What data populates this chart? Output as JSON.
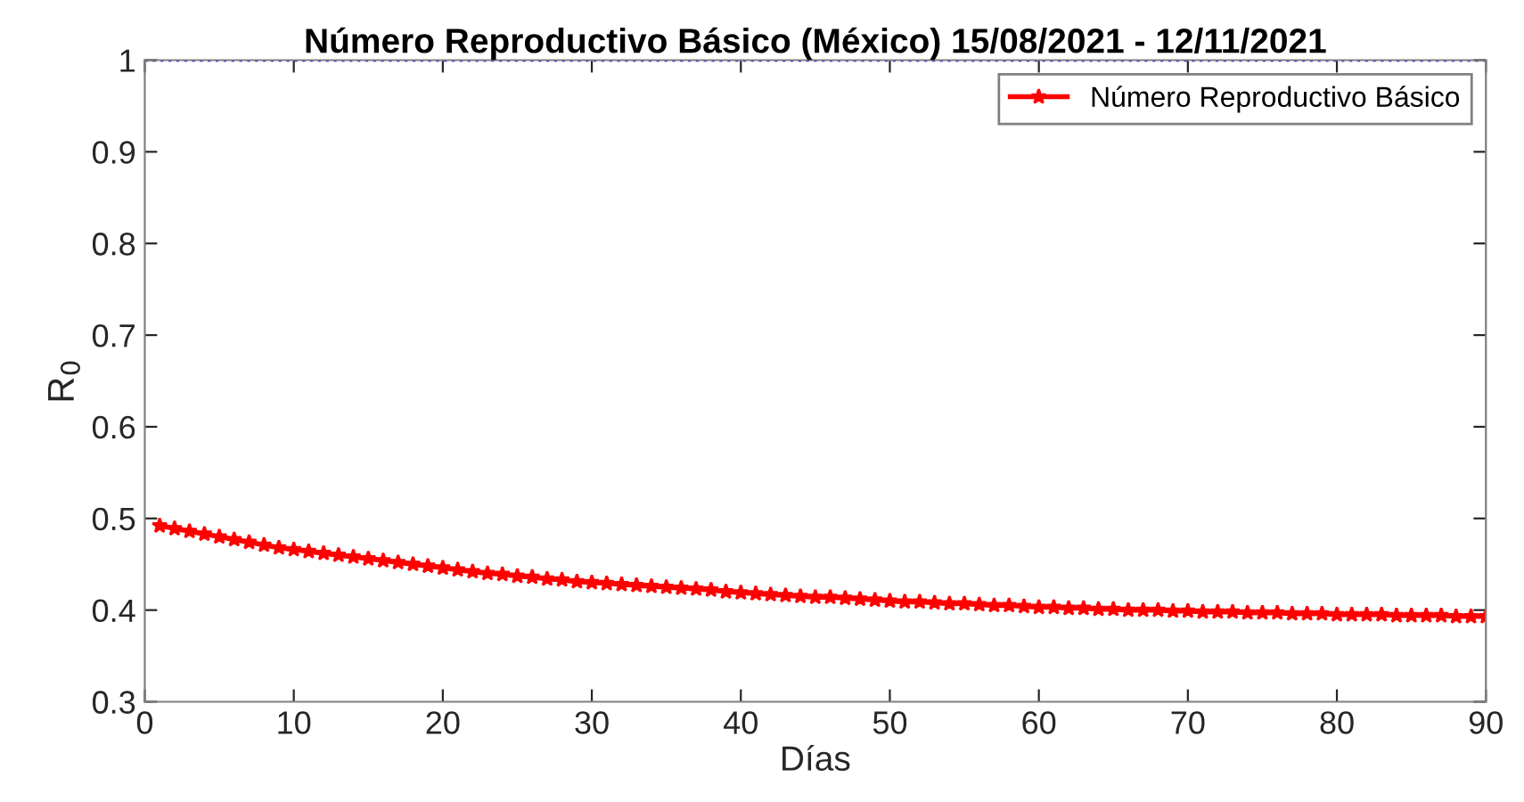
{
  "chart_data": {
    "type": "line",
    "title": "Número Reproductivo Básico (México) 15/08/2021 - 12/11/2021",
    "xlabel": "Días",
    "ylabel": "R$_{0}$",
    "x": [
      1,
      2,
      3,
      4,
      5,
      6,
      7,
      8,
      9,
      10,
      11,
      12,
      13,
      14,
      15,
      16,
      17,
      18,
      19,
      20,
      21,
      22,
      23,
      24,
      25,
      26,
      27,
      28,
      29,
      30,
      31,
      32,
      33,
      34,
      35,
      36,
      37,
      38,
      39,
      40,
      41,
      42,
      43,
      44,
      45,
      46,
      47,
      48,
      49,
      50,
      51,
      52,
      53,
      54,
      55,
      56,
      57,
      58,
      59,
      60,
      61,
      62,
      63,
      64,
      65,
      66,
      67,
      68,
      69,
      70,
      71,
      72,
      73,
      74,
      75,
      76,
      77,
      78,
      79,
      80,
      81,
      82,
      83,
      84,
      85,
      86,
      87,
      88,
      89,
      90
    ],
    "series": [
      {
        "name": "Número Reproductivo Básico",
        "color": "#ff0000",
        "values": [
          0.492,
          0.489,
          0.486,
          0.483,
          0.48,
          0.477,
          0.474,
          0.471,
          0.468,
          0.466,
          0.464,
          0.462,
          0.46,
          0.458,
          0.456,
          0.454,
          0.452,
          0.45,
          0.448,
          0.446,
          0.444,
          0.442,
          0.44,
          0.439,
          0.437,
          0.436,
          0.434,
          0.433,
          0.431,
          0.43,
          0.429,
          0.428,
          0.427,
          0.426,
          0.425,
          0.424,
          0.423,
          0.422,
          0.42,
          0.419,
          0.418,
          0.417,
          0.416,
          0.415,
          0.414,
          0.414,
          0.413,
          0.412,
          0.411,
          0.41,
          0.409,
          0.409,
          0.408,
          0.407,
          0.407,
          0.406,
          0.405,
          0.405,
          0.404,
          0.403,
          0.403,
          0.402,
          0.402,
          0.401,
          0.401,
          0.4,
          0.4,
          0.4,
          0.399,
          0.399,
          0.398,
          0.398,
          0.398,
          0.397,
          0.397,
          0.397,
          0.396,
          0.396,
          0.396,
          0.395,
          0.395,
          0.395,
          0.395,
          0.394,
          0.394,
          0.394,
          0.394,
          0.393,
          0.393,
          0.393
        ]
      }
    ],
    "xlim": [
      0,
      90
    ],
    "xticks": [
      0,
      10,
      20,
      30,
      40,
      50,
      60,
      70,
      80,
      90
    ],
    "ylim": [
      0.3,
      1
    ],
    "yticks": [
      0.3,
      0.4,
      0.5,
      0.6,
      0.7,
      0.8,
      0.9,
      1
    ],
    "ref_lines": [
      {
        "axis": "y",
        "value": 1,
        "color": "#0000ff",
        "line_style": "dotted"
      }
    ],
    "marker": "star",
    "line_style": "solid",
    "grid": false,
    "legend": "top right"
  }
}
